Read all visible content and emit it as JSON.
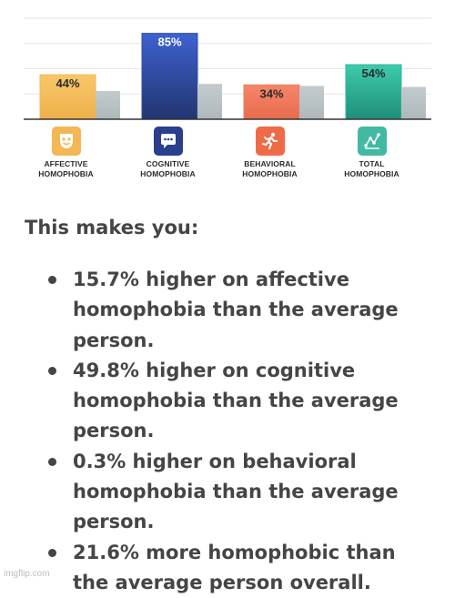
{
  "chart_data": {
    "type": "bar",
    "categories": [
      "AFFECTIVE HOMOPHOBIA",
      "COGNITIVE HOMOPHOBIA",
      "BEHAVIORAL HOMOPHOBIA",
      "TOTAL HOMOPHOBIA"
    ],
    "series": [
      {
        "values": [
          44,
          85,
          34,
          54
        ],
        "colors": [
          "#f3b755",
          "#2f4aa8",
          "#ef7c5e",
          "#2db59a"
        ]
      },
      {
        "values": [
          28,
          35,
          33,
          32
        ],
        "colors": [
          "#b9c2c6",
          "#b9c2c6",
          "#b9c2c6",
          "#b9c2c6"
        ]
      }
    ],
    "data_labels": [
      "44%",
      "85%",
      "34%",
      "54%"
    ],
    "ylim": [
      0,
      100
    ],
    "grid": true,
    "legend": "none",
    "icons": [
      "theater-mask-icon",
      "speech-bubble-icon",
      "running-person-icon",
      "line-graph-icon"
    ],
    "icon_colors": [
      "#f3b755",
      "#2b3f8c",
      "#ef6b47",
      "#43b9a3"
    ]
  },
  "results": {
    "heading": "This makes you:",
    "items": [
      "15.7% higher on affective homophobia than the average person.",
      "49.8% higher on cognitive homophobia than the average person.",
      "0.3% higher on behavioral homophobia than the average person.",
      "21.6% more homophobic than the average person overall."
    ]
  },
  "watermark": "imgflip.com"
}
